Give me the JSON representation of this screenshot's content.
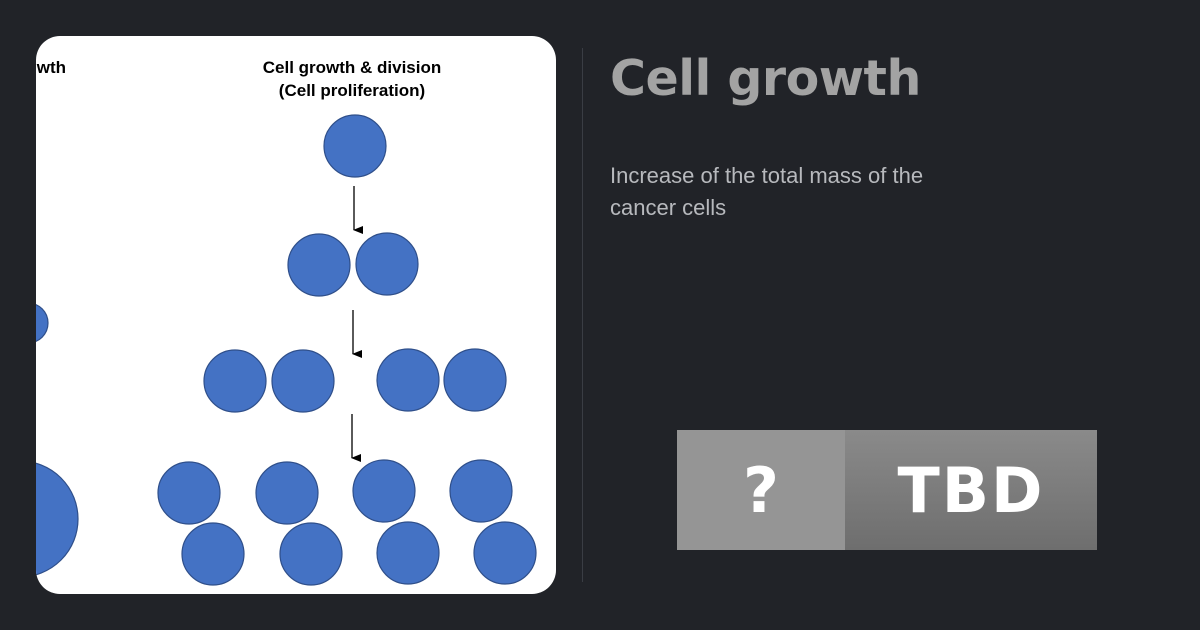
{
  "header": {
    "title": "Cell growth",
    "description": "Increase of the total mass of the cancer cells"
  },
  "diagram": {
    "left_heading_fragment": "wth",
    "heading_line1": "Cell growth & division",
    "heading_line2": "(Cell proliferation)",
    "cell_color": "#4472c4",
    "cell_outline": "#2f4f8a"
  },
  "badge": {
    "icon_text": "?",
    "label": "TBD",
    "left_color": "#959595",
    "right_color": "#7b7b7b"
  }
}
